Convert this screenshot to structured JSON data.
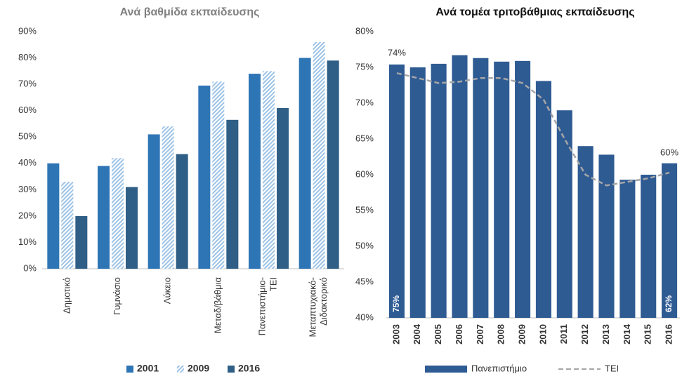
{
  "chart_data": [
    {
      "type": "bar",
      "title": "Ανά βαθμίδα εκπαίδευσης",
      "categories": [
        "Δημοτικό",
        "Γυμνάσιο",
        "Λύκειο",
        "Μεταδ/βάθμια",
        "Πανεπιστήμιο-ΤΕΙ",
        "Μεταπτυχιακό-Διδακτορικό"
      ],
      "series": [
        {
          "name": "2001",
          "color": "#2e75b6",
          "values": [
            40,
            39,
            51,
            69.5,
            74,
            80
          ]
        },
        {
          "name": "2009",
          "color": "#9dc3e6",
          "hatch": true,
          "values": [
            33,
            42,
            54,
            71,
            75,
            86
          ]
        },
        {
          "name": "2016",
          "color": "#2f5f86",
          "values": [
            20,
            31,
            43.5,
            56.5,
            61,
            79
          ]
        }
      ],
      "ylim": [
        0,
        90
      ],
      "yticks": [
        {
          "value": 0,
          "label": "0%"
        },
        {
          "value": 10,
          "label": "10%"
        },
        {
          "value": 20,
          "label": "20%"
        },
        {
          "value": 30,
          "label": "30%"
        },
        {
          "value": 40,
          "label": "40%"
        },
        {
          "value": 50,
          "label": "50%"
        },
        {
          "value": 60,
          "label": "60%"
        },
        {
          "value": 70,
          "label": "70%"
        },
        {
          "value": 80,
          "label": "80%"
        },
        {
          "value": 90,
          "label": "90%"
        }
      ],
      "legend": "bottom"
    },
    {
      "type": "bar",
      "title": "Ανά τομέα τριτοβάθμιας εκπαίδευσης",
      "categories": [
        "2003",
        "2004",
        "2005",
        "2006",
        "2007",
        "2008",
        "2009",
        "2010",
        "2011",
        "2012",
        "2013",
        "2014",
        "2015",
        "2016"
      ],
      "series": [
        {
          "name": "Πανεπιστήμιο",
          "type": "bar",
          "color": "#2f5b93",
          "values": [
            75.4,
            75,
            75.5,
            76.7,
            76.3,
            75.8,
            75.9,
            73.1,
            69,
            64,
            62.8,
            59.3,
            60,
            61.6
          ],
          "value_labels": [
            "75%",
            null,
            null,
            null,
            null,
            null,
            null,
            null,
            null,
            null,
            null,
            null,
            null,
            "62%"
          ]
        },
        {
          "name": "ΤΕΙ",
          "type": "line",
          "color": "#a6a6a6",
          "dashed": true,
          "values": [
            74.2,
            73.5,
            72.8,
            73,
            73.5,
            73.5,
            72.8,
            70.5,
            65,
            60,
            58.5,
            59,
            59.5,
            60.3
          ],
          "value_labels": [
            "74%",
            null,
            null,
            null,
            null,
            null,
            null,
            null,
            null,
            null,
            null,
            null,
            null,
            "60%"
          ]
        }
      ],
      "ylim": [
        40,
        80
      ],
      "yticks": [
        {
          "value": 40,
          "label": "40%"
        },
        {
          "value": 45,
          "label": "45%"
        },
        {
          "value": 50,
          "label": "50%"
        },
        {
          "value": 55,
          "label": "55%"
        },
        {
          "value": 60,
          "label": "60%"
        },
        {
          "value": 65,
          "label": "65%"
        },
        {
          "value": 70,
          "label": "70%"
        },
        {
          "value": 75,
          "label": "75%"
        },
        {
          "value": 80,
          "label": "80%"
        }
      ],
      "legend": "bottom"
    }
  ]
}
